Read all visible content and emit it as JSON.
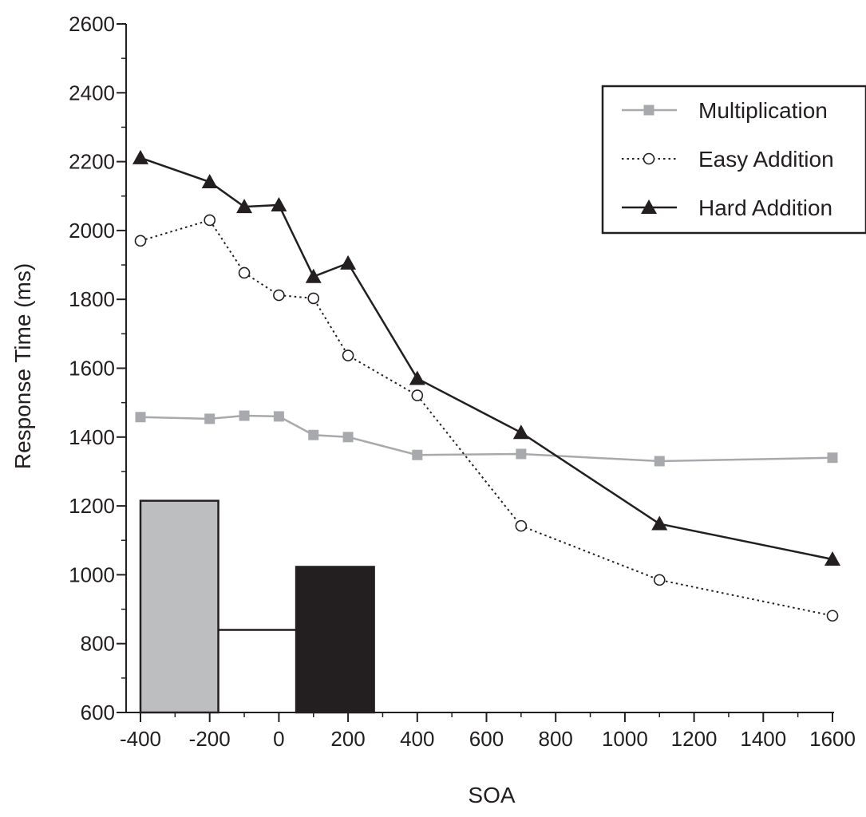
{
  "chart_data": {
    "type": "line",
    "title": "",
    "xlabel": "SOA",
    "ylabel": "Response Time (ms)",
    "xlim": [
      -400,
      1600
    ],
    "ylim": [
      600,
      2600
    ],
    "x_ticks": [
      -400,
      -200,
      0,
      200,
      400,
      600,
      800,
      1000,
      1200,
      1400,
      1600
    ],
    "y_ticks": [
      600,
      800,
      1000,
      1200,
      1400,
      1600,
      1800,
      2000,
      2200,
      2400,
      2600
    ],
    "x_tick_labels": [
      "-400",
      "-200",
      "0",
      "200",
      "400",
      "600",
      "800",
      "1000",
      "1200",
      "1400",
      "1600"
    ],
    "y_tick_labels": [
      "600",
      "800",
      "1000",
      "1200",
      "1400",
      "1600",
      "1800",
      "2000",
      "2200",
      "2400",
      "2600"
    ],
    "grid": false,
    "legend_position": "top-right",
    "series": [
      {
        "name": "Multiplication",
        "style": "solid",
        "marker": "square",
        "color": "#a7a9ac",
        "x": [
          -400,
          -200,
          -100,
          0,
          100,
          200,
          400,
          700,
          1100,
          1600
        ],
        "values": [
          1458,
          1453,
          1462,
          1460,
          1406,
          1400,
          1348,
          1351,
          1330,
          1340
        ]
      },
      {
        "name": "Easy Addition",
        "style": "dotted",
        "marker": "open-circle",
        "color": "#231f20",
        "x": [
          -400,
          -200,
          -100,
          0,
          100,
          200,
          400,
          700,
          1100,
          1600
        ],
        "values": [
          1970,
          2030,
          1877,
          1812,
          1803,
          1637,
          1521,
          1142,
          985,
          881
        ]
      },
      {
        "name": "Hard Addition",
        "style": "solid",
        "marker": "filled-triangle",
        "color": "#231f20",
        "x": [
          -400,
          -200,
          -100,
          0,
          100,
          200,
          400,
          700,
          1100,
          1600
        ],
        "values": [
          2211,
          2141,
          2069,
          2074,
          1866,
          1905,
          1570,
          1413,
          1148,
          1045
        ]
      }
    ],
    "timeline_diagram": {
      "first_stimulus_box": {
        "x_start": -400,
        "x_end": -175,
        "top": 1215,
        "color": "#bcbec0"
      },
      "connector": {
        "x_start": -175,
        "x_end": 50,
        "level": 840
      },
      "second_stimulus_box": {
        "x_start": 50,
        "x_end": 275,
        "top": 1023,
        "color": "#231f20"
      }
    }
  }
}
